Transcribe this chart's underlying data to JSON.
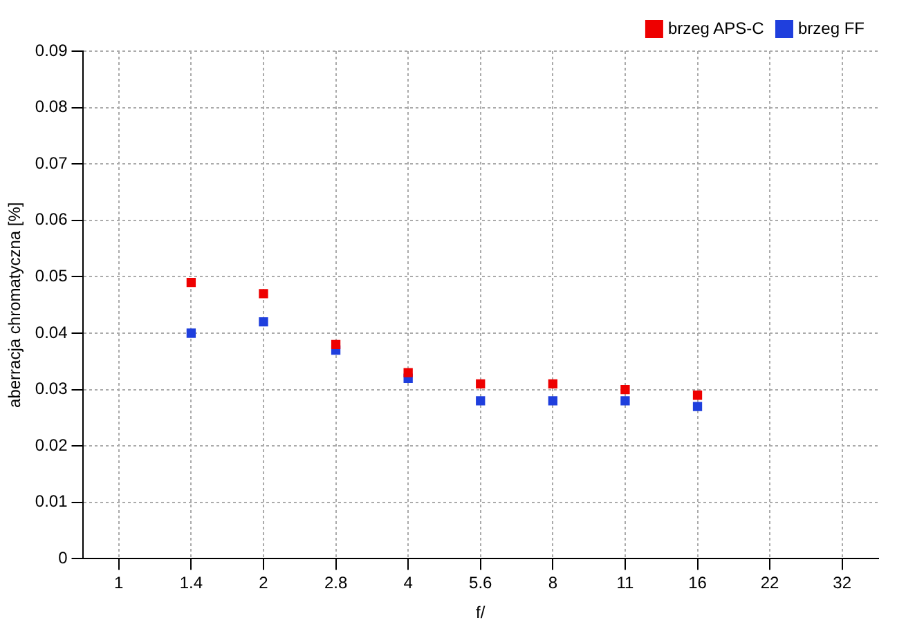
{
  "chart_data": {
    "type": "scatter",
    "xlabel": "f/",
    "ylabel": "aberracja chromatyczna [%]",
    "categories": [
      "1",
      "1.4",
      "2",
      "2.8",
      "4",
      "5.6",
      "8",
      "11",
      "16",
      "22",
      "32"
    ],
    "series": [
      {
        "name": "brzeg APS-C",
        "color": "#ee0000",
        "values": [
          null,
          0.049,
          0.047,
          0.038,
          0.033,
          0.031,
          0.031,
          0.03,
          0.029,
          null,
          null
        ]
      },
      {
        "name": "brzeg FF",
        "color": "#1f3fdd",
        "values": [
          null,
          0.04,
          0.042,
          0.037,
          0.032,
          0.028,
          0.028,
          0.028,
          0.027,
          null,
          null
        ]
      }
    ],
    "ylim": [
      0,
      0.09
    ],
    "yticks": [
      0,
      0.01,
      0.02,
      0.03,
      0.04,
      0.05,
      0.06,
      0.07,
      0.08,
      0.09
    ],
    "grid": true,
    "legend": "top right",
    "marker": "square"
  }
}
